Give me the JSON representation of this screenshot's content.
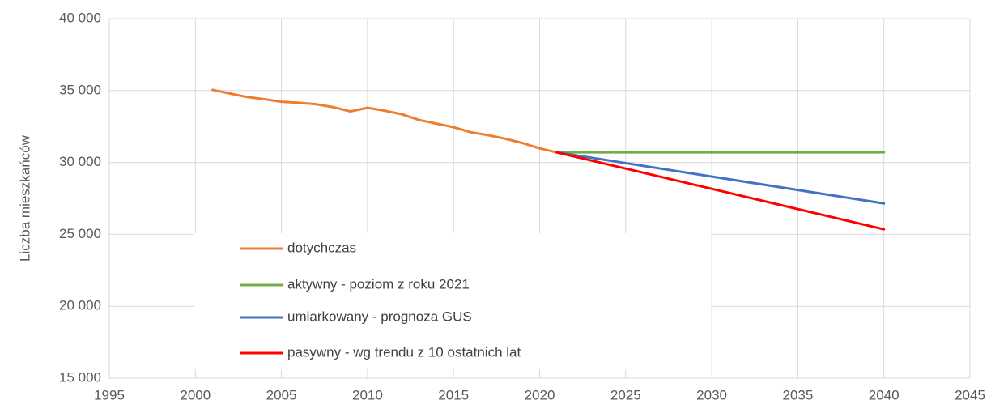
{
  "chart_data": {
    "type": "line",
    "y_label": "Liczba mieszkańców",
    "xlim": [
      1995,
      2045
    ],
    "xticks": [
      1995,
      2000,
      2005,
      2010,
      2015,
      2020,
      2025,
      2030,
      2035,
      2040,
      2045
    ],
    "ylim": [
      15000,
      40000
    ],
    "yticks": [
      {
        "value": 15000,
        "label": "15 000"
      },
      {
        "value": 20000,
        "label": "20 000"
      },
      {
        "value": 25000,
        "label": "25 000"
      },
      {
        "value": 30000,
        "label": "30 000"
      },
      {
        "value": 35000,
        "label": "35 000"
      },
      {
        "value": 40000,
        "label": "40 000"
      }
    ],
    "grid": true,
    "legend": "inside",
    "series": [
      {
        "name": "dotychczas",
        "color": "#ed7d31",
        "x": [
          2001,
          2002,
          2003,
          2004,
          2005,
          2006,
          2007,
          2008,
          2009,
          2010,
          2011,
          2012,
          2013,
          2014,
          2015,
          2016,
          2017,
          2018,
          2019,
          2020,
          2021
        ],
        "values": [
          35050,
          34800,
          34550,
          34400,
          34220,
          34150,
          34050,
          33850,
          33550,
          33800,
          33600,
          33350,
          32950,
          32700,
          32450,
          32100,
          31900,
          31650,
          31350,
          30980,
          30700
        ]
      },
      {
        "name": "aktywny - poziom z roku 2021",
        "color": "#70ad47",
        "x": [
          2021,
          2040
        ],
        "values": [
          30700,
          30700
        ]
      },
      {
        "name": "umiarkowany - prognoza GUS",
        "color": "#4472c4",
        "x": [
          2021,
          2040
        ],
        "values": [
          30700,
          27150
        ]
      },
      {
        "name": "pasywny - wg trendu z 10 ostatnich lat",
        "color": "#ff0000",
        "x": [
          2021,
          2040
        ],
        "values": [
          30700,
          25350
        ]
      }
    ]
  }
}
